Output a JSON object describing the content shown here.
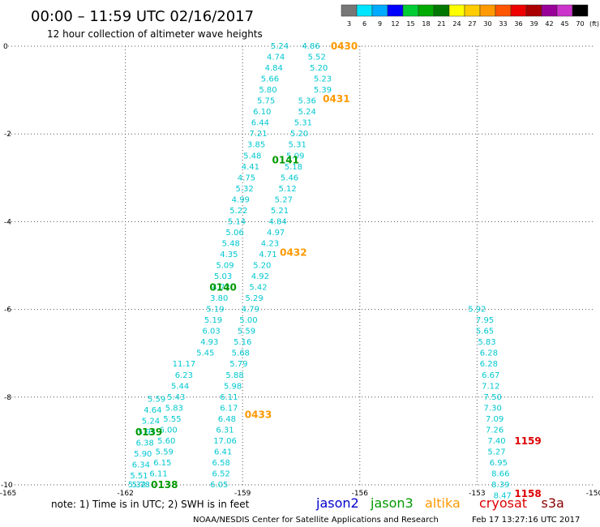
{
  "title": "00:00 – 11:59 UTC 02/16/2017",
  "subtitle": "12 hour collection of altimeter wave heights",
  "note": "note: 1) Time is in UTC; 2) SWH is in feet",
  "credit": "NOAA/NESDIS Center for Satellite Applications and Research",
  "timestamp": "Feb 17 13:27:16 UTC 2017",
  "missions": [
    {
      "name": "jason2",
      "color": "#0000cc"
    },
    {
      "name": "jason3",
      "color": "#009900"
    },
    {
      "name": "altika",
      "color": "#ff9900"
    },
    {
      "name": "cryosat",
      "color": "#dd0000"
    },
    {
      "name": "s3a",
      "color": "#880000"
    }
  ],
  "color_scale": {
    "unit": "(ft)",
    "levels": [
      "3",
      "6",
      "9",
      "12",
      "15",
      "18",
      "21",
      "24",
      "27",
      "30",
      "33",
      "36",
      "39",
      "42",
      "45",
      "70"
    ],
    "colors": [
      "#777777",
      "#00e5ff",
      "#00aaff",
      "#0000ff",
      "#00cc33",
      "#00aa00",
      "#007700",
      "#ffff00",
      "#ffcc00",
      "#ff9900",
      "#ff5500",
      "#ee0000",
      "#aa0000",
      "#990099",
      "#cc33cc",
      "#000000"
    ]
  },
  "chart_data": {
    "type": "scatter",
    "title": "12 hour collection of altimeter wave heights",
    "xlim": [
      -165,
      -150
    ],
    "ylim": [
      -10,
      0
    ],
    "xticks": [
      -162,
      -159,
      -156,
      -153
    ],
    "yticks": [
      -2,
      -4,
      -6,
      -8
    ],
    "corner_labels": {
      "x_left": "-165",
      "x_right": "-150",
      "y_top": "0",
      "y_bottom": "-10"
    },
    "grid": true,
    "tracks": [
      {
        "label": "0430",
        "label_pos": [
          -156.4,
          0
        ],
        "color": "#ff9900",
        "x_start": -156.8,
        "y_start": 0,
        "x_end": -160.5,
        "y_end": -9.85,
        "points": [
          [
            -157.25,
            0.0,
            "4.86"
          ],
          [
            -157.1,
            -0.25,
            "5.52"
          ],
          [
            -157.05,
            -0.5,
            "5.20"
          ],
          [
            -156.95,
            -0.75,
            "5.23"
          ],
          [
            -156.95,
            -1.0,
            "5.39"
          ],
          [
            -157.35,
            -1.25,
            "5.36"
          ],
          [
            -157.35,
            -1.5,
            "5.24"
          ],
          [
            -157.45,
            -1.75,
            "5.31"
          ],
          [
            -157.55,
            -2.0,
            "5.20"
          ],
          [
            -157.6,
            -2.25,
            "5.31"
          ],
          [
            -157.65,
            -2.5,
            "5.09"
          ],
          [
            -157.7,
            -2.75,
            "5.18"
          ],
          [
            -157.8,
            -3.0,
            "5.46"
          ],
          [
            -157.85,
            -3.25,
            "5.12"
          ],
          [
            -157.95,
            -3.5,
            "5.27"
          ],
          [
            -158.05,
            -3.75,
            "5.21"
          ],
          [
            -158.1,
            -4.0,
            "4.84"
          ],
          [
            -158.15,
            -4.25,
            "4.97"
          ],
          [
            -158.3,
            -4.5,
            "4.23"
          ],
          [
            -158.35,
            -4.75,
            "4.71"
          ],
          [
            -158.5,
            -5.0,
            "5.20"
          ],
          [
            -158.55,
            -5.25,
            "4.92"
          ],
          [
            -158.6,
            -5.5,
            "5.42"
          ],
          [
            -158.7,
            -5.75,
            "5.29"
          ],
          [
            -158.8,
            -6.0,
            "4.79"
          ],
          [
            -158.85,
            -6.25,
            "5.00"
          ],
          [
            -158.9,
            -6.5,
            "5.59"
          ],
          [
            -159.0,
            -6.75,
            "5.16"
          ],
          [
            -159.05,
            -7.0,
            "5.68"
          ],
          [
            -159.1,
            -7.25,
            "5.79"
          ],
          [
            -159.2,
            -7.5,
            "5.88"
          ],
          [
            -159.25,
            -7.75,
            "5.98"
          ],
          [
            -159.35,
            -8.0,
            "6.11"
          ],
          [
            -159.35,
            -8.25,
            "6.17"
          ],
          [
            -159.4,
            -8.5,
            "6.48"
          ],
          [
            -159.45,
            -8.75,
            "6.31"
          ],
          [
            -159.45,
            -9.0,
            "17.06"
          ],
          [
            -159.5,
            -9.25,
            "6.41"
          ],
          [
            -159.55,
            -9.5,
            "6.58"
          ],
          [
            -159.55,
            -9.75,
            "6.52"
          ],
          [
            -159.6,
            -10.0,
            "6.05"
          ]
        ]
      },
      {
        "label": "0431",
        "label_pos": [
          -156.6,
          -1.2
        ],
        "color": "#ff9900"
      },
      {
        "label": "0432",
        "label_pos": [
          -157.7,
          -4.7
        ],
        "color": "#ff9900"
      },
      {
        "label": "0433",
        "label_pos": [
          -158.6,
          -8.4
        ],
        "color": "#ff9900"
      },
      {
        "label": "0141",
        "label_pos": [
          -157.9,
          -2.6
        ],
        "color": "#009900",
        "points": [
          [
            -158.05,
            0.0,
            "5.24"
          ],
          [
            -158.15,
            -0.25,
            "4.74"
          ],
          [
            -158.2,
            -0.5,
            "4.84"
          ],
          [
            -158.3,
            -0.75,
            "5.66"
          ],
          [
            -158.35,
            -1.0,
            "5.80"
          ],
          [
            -158.4,
            -1.25,
            "5.75"
          ],
          [
            -158.5,
            -1.5,
            "6.10"
          ],
          [
            -158.55,
            -1.75,
            "6.44"
          ],
          [
            -158.6,
            -2.0,
            "7.21"
          ],
          [
            -158.65,
            -2.25,
            "3.85"
          ],
          [
            -158.75,
            -2.5,
            "5.48"
          ],
          [
            -158.8,
            -2.75,
            "4.41"
          ],
          [
            -158.9,
            -3.0,
            "4.75"
          ],
          [
            -158.95,
            -3.25,
            "5.32"
          ],
          [
            -159.05,
            -3.5,
            "4.99"
          ],
          [
            -159.1,
            -3.75,
            "5.22"
          ],
          [
            -159.15,
            -4.0,
            "5.14"
          ],
          [
            -159.2,
            -4.25,
            "5.06"
          ],
          [
            -159.3,
            -4.5,
            "5.48"
          ],
          [
            -159.35,
            -4.75,
            "4.35"
          ],
          [
            -159.45,
            -5.0,
            "5.09"
          ],
          [
            -159.5,
            -5.25,
            "5.03"
          ],
          [
            -159.55,
            -5.5,
            "4.72"
          ],
          [
            -159.6,
            -5.75,
            "3.80"
          ],
          [
            -159.7,
            -6.0,
            "5.19"
          ],
          [
            -159.75,
            -6.25,
            "5.19"
          ],
          [
            -159.8,
            -6.5,
            "6.03"
          ],
          [
            -159.85,
            -6.75,
            "4.93"
          ],
          [
            -159.95,
            -7.0,
            "5.45"
          ]
        ]
      },
      {
        "label": "0140",
        "label_pos": [
          -159.5,
          -5.5
        ],
        "color": "#009900",
        "points": [
          [
            -160.5,
            -7.25,
            "11.17"
          ],
          [
            -160.5,
            -7.5,
            "6.23"
          ],
          [
            -160.6,
            -7.75,
            "5.44"
          ],
          [
            -160.7,
            -8.0,
            "5.43"
          ],
          [
            -160.75,
            -8.25,
            "5.83"
          ],
          [
            -160.8,
            -8.5,
            "5.55"
          ],
          [
            -160.9,
            -8.75,
            "6.00"
          ],
          [
            -160.95,
            -9.0,
            "5.60"
          ],
          [
            -161.0,
            -9.25,
            "5.59"
          ],
          [
            -161.05,
            -9.5,
            "6.15"
          ],
          [
            -161.15,
            -9.75,
            "6.11"
          ]
        ]
      },
      {
        "label": "0139",
        "label_pos": [
          -161.4,
          -8.8
        ],
        "color": "#009900",
        "points": [
          [
            -161.2,
            -8.05,
            "5.59"
          ],
          [
            -161.3,
            -8.3,
            "4.64"
          ],
          [
            -161.35,
            -8.55,
            "5.24"
          ],
          [
            -161.45,
            -8.8,
            "5.95"
          ],
          [
            -161.5,
            -9.05,
            "6.38"
          ],
          [
            -161.55,
            -9.3,
            "5.90"
          ],
          [
            -161.6,
            -9.55,
            "6.34"
          ],
          [
            -161.65,
            -9.8,
            "5.51"
          ],
          [
            -161.7,
            -10.0,
            "5.32"
          ]
        ]
      },
      {
        "label": "0138",
        "label_pos": [
          -161.0,
          -10.0
        ],
        "color": "#009900",
        "points": [
          [
            -161.6,
            -10.0,
            "5.78"
          ]
        ]
      },
      {
        "label": "1159",
        "label_pos": [
          -151.7,
          -9.0
        ],
        "color": "#dd0000",
        "points": [
          [
            -153.0,
            -6.0,
            "5.92"
          ],
          [
            -152.8,
            -6.25,
            "7.95"
          ],
          [
            -152.8,
            -6.5,
            "5.65"
          ],
          [
            -152.75,
            -6.75,
            "5.83"
          ],
          [
            -152.7,
            -7.0,
            "6.28"
          ],
          [
            -152.7,
            -7.25,
            "6.28"
          ],
          [
            -152.65,
            -7.5,
            "6.67"
          ],
          [
            -152.65,
            -7.75,
            "7.12"
          ],
          [
            -152.6,
            -8.0,
            "7.50"
          ],
          [
            -152.6,
            -8.25,
            "7.30"
          ],
          [
            -152.55,
            -8.5,
            "7.09"
          ],
          [
            -152.55,
            -8.75,
            "7.26"
          ],
          [
            -152.5,
            -9.0,
            "7.40"
          ],
          [
            -152.5,
            -9.25,
            "5.27"
          ],
          [
            -152.45,
            -9.5,
            "6.95"
          ],
          [
            -152.4,
            -9.75,
            "8.66"
          ],
          [
            -152.4,
            -10.0,
            "8.39"
          ],
          [
            -152.35,
            -10.25,
            "8.47"
          ]
        ]
      },
      {
        "label": "1158",
        "label_pos": [
          -151.7,
          -10.2
        ],
        "color": "#dd0000"
      }
    ]
  }
}
